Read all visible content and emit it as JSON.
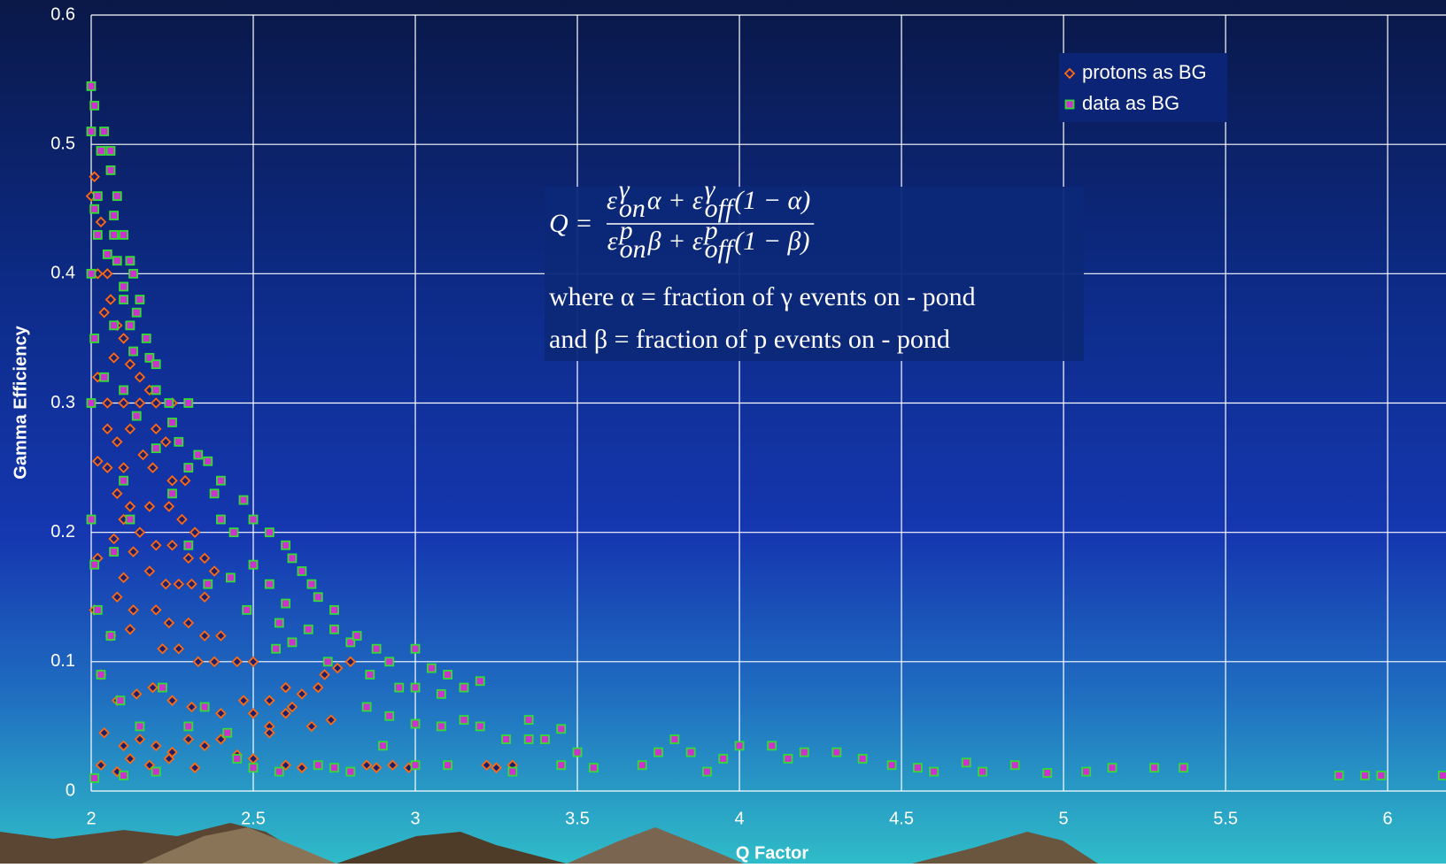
{
  "chart_data": {
    "type": "scatter",
    "x_label": "Q Factor",
    "y_label": "Gamma Efficiency",
    "xlim": [
      2,
      6.18
    ],
    "ylim": [
      0,
      0.6
    ],
    "xticks": [
      2,
      2.5,
      3,
      3.5,
      4,
      4.5,
      5,
      5.5,
      6
    ],
    "yticks": [
      0,
      0.1,
      0.2,
      0.3,
      0.4,
      0.5,
      0.6
    ],
    "grid": true,
    "legend": "upper right",
    "series": [
      {
        "name": "protons as BG",
        "marker": "diamond",
        "color": "#ff6a10",
        "fill": "#1b1f6e",
        "x": [
          2.0,
          2.01,
          2.03,
          2.02,
          2.05,
          2.06,
          2.04,
          2.08,
          2.1,
          2.07,
          2.12,
          2.15,
          2.02,
          2.05,
          2.1,
          2.15,
          2.2,
          2.18,
          2.25,
          2.05,
          2.12,
          2.2,
          2.23,
          2.08,
          2.02,
          2.05,
          2.1,
          2.16,
          2.19,
          2.25,
          2.29,
          2.08,
          2.12,
          2.18,
          2.24,
          2.28,
          2.32,
          2.1,
          2.15,
          2.2,
          2.07,
          2.02,
          2.13,
          2.25,
          2.3,
          2.35,
          2.38,
          2.18,
          2.23,
          2.27,
          2.31,
          2.35,
          2.1,
          2.08,
          2.13,
          2.2,
          2.24,
          2.3,
          2.35,
          2.4,
          2.01,
          2.06,
          2.12,
          2.22,
          2.27,
          2.33,
          2.38,
          2.45,
          2.5,
          2.03,
          2.08,
          2.14,
          2.19,
          2.25,
          2.31,
          2.4,
          2.47,
          2.55,
          2.6,
          2.65,
          2.7,
          2.72,
          2.76,
          2.8,
          2.5,
          2.55,
          2.6,
          2.62,
          2.68,
          2.74,
          2.04,
          2.1,
          2.15,
          2.2,
          2.25,
          2.3,
          2.35,
          2.4,
          2.45,
          2.5,
          2.55,
          2.03,
          2.08,
          2.12,
          2.18,
          2.24,
          2.32,
          2.6,
          2.65,
          2.85,
          2.88,
          2.93,
          2.98,
          3.22,
          3.25,
          3.3
        ],
        "values": [
          0.46,
          0.475,
          0.44,
          0.4,
          0.4,
          0.38,
          0.37,
          0.36,
          0.35,
          0.335,
          0.33,
          0.32,
          0.32,
          0.3,
          0.3,
          0.3,
          0.3,
          0.31,
          0.3,
          0.28,
          0.28,
          0.28,
          0.27,
          0.27,
          0.255,
          0.25,
          0.25,
          0.26,
          0.25,
          0.24,
          0.24,
          0.23,
          0.22,
          0.22,
          0.22,
          0.21,
          0.2,
          0.21,
          0.2,
          0.19,
          0.195,
          0.18,
          0.185,
          0.19,
          0.18,
          0.18,
          0.17,
          0.17,
          0.16,
          0.16,
          0.16,
          0.15,
          0.165,
          0.15,
          0.14,
          0.14,
          0.13,
          0.13,
          0.12,
          0.12,
          0.14,
          0.12,
          0.125,
          0.11,
          0.11,
          0.1,
          0.1,
          0.1,
          0.1,
          0.09,
          0.07,
          0.075,
          0.08,
          0.07,
          0.065,
          0.06,
          0.07,
          0.07,
          0.08,
          0.075,
          0.08,
          0.09,
          0.095,
          0.1,
          0.06,
          0.05,
          0.06,
          0.065,
          0.05,
          0.055,
          0.045,
          0.035,
          0.04,
          0.035,
          0.03,
          0.04,
          0.035,
          0.04,
          0.028,
          0.025,
          0.045,
          0.02,
          0.015,
          0.025,
          0.02,
          0.025,
          0.018,
          0.02,
          0.018,
          0.02,
          0.018,
          0.02,
          0.018,
          0.02,
          0.018,
          0.02
        ]
      },
      {
        "name": "data as BG",
        "marker": "square",
        "color": "#33dd33",
        "fill": "#cc33cc",
        "x": [
          2.0,
          2.01,
          2.0,
          2.04,
          2.03,
          2.06,
          2.06,
          2.02,
          2.08,
          2.01,
          2.07,
          2.02,
          2.07,
          2.1,
          2.05,
          2.08,
          2.12,
          2.0,
          2.1,
          2.13,
          2.1,
          2.15,
          2.07,
          2.12,
          2.14,
          2.17,
          2.01,
          2.13,
          2.18,
          2.2,
          2.04,
          2.1,
          2.2,
          2.24,
          2.0,
          2.25,
          2.3,
          2.14,
          2.27,
          2.33,
          2.2,
          2.3,
          2.36,
          2.1,
          2.4,
          2.25,
          2.38,
          2.0,
          2.12,
          2.4,
          2.47,
          2.5,
          2.55,
          2.3,
          2.44,
          2.6,
          2.62,
          2.01,
          2.07,
          2.5,
          2.65,
          2.36,
          2.43,
          2.55,
          2.68,
          2.7,
          2.48,
          2.6,
          2.75,
          2.02,
          2.06,
          2.58,
          2.67,
          2.75,
          2.8,
          2.57,
          2.62,
          2.73,
          2.82,
          2.88,
          2.92,
          3.0,
          3.05,
          3.1,
          2.86,
          2.95,
          3.0,
          3.08,
          3.15,
          3.2,
          2.85,
          2.92,
          3.0,
          3.08,
          3.15,
          3.2,
          3.28,
          3.35,
          3.35,
          3.45,
          3.4,
          3.5,
          2.03,
          2.09,
          2.15,
          2.22,
          2.3,
          2.35,
          2.42,
          2.45,
          2.5,
          2.58,
          2.7,
          2.75,
          2.8,
          2.9,
          3.0,
          3.1,
          3.3,
          3.45,
          3.55,
          3.7,
          3.75,
          3.8,
          3.85,
          3.95,
          4.0,
          3.9,
          4.1,
          4.15,
          4.2,
          4.3,
          4.38,
          4.47,
          4.55,
          4.6,
          4.7,
          4.75,
          4.85,
          4.95,
          5.07,
          5.15,
          5.28,
          5.37,
          5.85,
          5.93,
          5.98,
          6.17,
          2.01,
          2.1,
          2.2
        ],
        "values": [
          0.545,
          0.53,
          0.51,
          0.51,
          0.495,
          0.495,
          0.48,
          0.46,
          0.46,
          0.45,
          0.445,
          0.43,
          0.43,
          0.43,
          0.415,
          0.41,
          0.41,
          0.4,
          0.39,
          0.4,
          0.38,
          0.38,
          0.36,
          0.36,
          0.37,
          0.35,
          0.35,
          0.34,
          0.335,
          0.33,
          0.32,
          0.31,
          0.31,
          0.3,
          0.3,
          0.285,
          0.3,
          0.29,
          0.27,
          0.26,
          0.265,
          0.25,
          0.255,
          0.24,
          0.24,
          0.23,
          0.23,
          0.21,
          0.21,
          0.21,
          0.225,
          0.21,
          0.2,
          0.19,
          0.2,
          0.19,
          0.18,
          0.175,
          0.185,
          0.175,
          0.17,
          0.16,
          0.165,
          0.16,
          0.16,
          0.15,
          0.14,
          0.145,
          0.14,
          0.14,
          0.12,
          0.13,
          0.125,
          0.125,
          0.115,
          0.11,
          0.115,
          0.1,
          0.12,
          0.11,
          0.1,
          0.11,
          0.095,
          0.09,
          0.09,
          0.08,
          0.08,
          0.075,
          0.08,
          0.085,
          0.065,
          0.058,
          0.052,
          0.05,
          0.055,
          0.05,
          0.04,
          0.055,
          0.04,
          0.048,
          0.04,
          0.03,
          0.09,
          0.07,
          0.05,
          0.08,
          0.05,
          0.065,
          0.045,
          0.025,
          0.018,
          0.015,
          0.02,
          0.018,
          0.015,
          0.035,
          0.02,
          0.02,
          0.015,
          0.02,
          0.018,
          0.02,
          0.03,
          0.04,
          0.03,
          0.025,
          0.035,
          0.015,
          0.035,
          0.025,
          0.03,
          0.03,
          0.025,
          0.02,
          0.018,
          0.015,
          0.022,
          0.015,
          0.02,
          0.014,
          0.015,
          0.018,
          0.018,
          0.018,
          0.012,
          0.012,
          0.012,
          0.012,
          0.01,
          0.012,
          0.015
        ]
      }
    ],
    "annotation": {
      "lhs": "Q =",
      "numerator": [
        {
          "t": "ε"
        },
        {
          "sup": "γ",
          "sub": "on"
        },
        {
          "t": " α + ε"
        },
        {
          "sup": "γ",
          "sub": "off"
        },
        {
          "t": " (1 − α)"
        }
      ],
      "denominator": [
        {
          "t": "ε"
        },
        {
          "sup": "p",
          "sub": "on"
        },
        {
          "t": " β + ε"
        },
        {
          "sup": "p",
          "sub": "off"
        },
        {
          "t": " (1 − β)"
        }
      ],
      "lines": [
        "where  α = fraction  of  γ  events  on - pond",
        "and  β = fraction  of  p  events  on - pond"
      ]
    }
  }
}
